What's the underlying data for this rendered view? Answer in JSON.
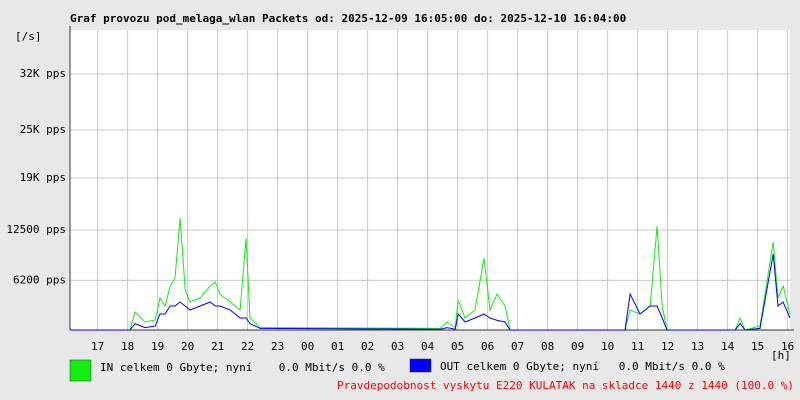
{
  "chart_data": {
    "type": "line",
    "title": "Graf provozu pod_melaga_wlan Packets od: 2025-12-09 16:05:00 do: 2025-12-10 16:04:00",
    "y_label": "[/s]",
    "x_label": "[h]",
    "footer": "Pravdepodobnost vyskytu E220 KULATAK na skladce 1440 z 1440 (100.0 %)",
    "grid": true,
    "xlim": [
      16.08,
      40.08
    ],
    "xticks": [
      17,
      18,
      19,
      20,
      21,
      22,
      23,
      {
        "value": 24,
        "label": "00"
      },
      {
        "value": 25,
        "label": "01"
      },
      {
        "value": 26,
        "label": "02"
      },
      {
        "value": 27,
        "label": "03"
      },
      {
        "value": 28,
        "label": "04"
      },
      {
        "value": 29,
        "label": "05"
      },
      {
        "value": 30,
        "label": "06"
      },
      {
        "value": 31,
        "label": "07"
      },
      {
        "value": 32,
        "label": "08"
      },
      {
        "value": 33,
        "label": "09"
      },
      {
        "value": 34,
        "label": "10"
      },
      {
        "value": 35,
        "label": "11"
      },
      {
        "value": 36,
        "label": "12"
      },
      {
        "value": 37,
        "label": "13"
      },
      {
        "value": 38,
        "label": "14"
      },
      {
        "value": 39,
        "label": "15"
      },
      {
        "value": 40,
        "label": "16"
      }
    ],
    "ylim": [
      0,
      37500
    ],
    "yticks": [
      {
        "value": 6200,
        "label": "6200 pps"
      },
      {
        "value": 12500,
        "label": "12500 pps"
      },
      {
        "value": 19000,
        "label": "19K pps"
      },
      {
        "value": 25000,
        "label": "25K pps"
      },
      {
        "value": 32000,
        "label": "32K pps"
      }
    ],
    "x": [
      16.08,
      18.08,
      18.25,
      18.58,
      18.92,
      19.08,
      19.25,
      19.42,
      19.58,
      19.75,
      19.92,
      20.08,
      20.42,
      20.75,
      20.92,
      21.08,
      21.42,
      21.75,
      21.95,
      22.08,
      22.42,
      28.42,
      28.65,
      28.92,
      29.02,
      29.25,
      29.58,
      29.88,
      30.08,
      30.32,
      30.58,
      30.75,
      34.58,
      34.75,
      35.08,
      35.42,
      35.65,
      35.82,
      35.98,
      38.25,
      38.42,
      38.58,
      39.08,
      39.52,
      39.68,
      39.85,
      40.08
    ],
    "series": [
      {
        "name": "IN celkem 0 Gbyte; nyní    0.0 Mbit/s 0.0 %",
        "color": "#11ee11",
        "values": [
          0,
          0,
          2250,
          1000,
          1250,
          4000,
          3000,
          5500,
          6500,
          14000,
          5000,
          3500,
          4000,
          5500,
          6000,
          4500,
          3500,
          2500,
          11500,
          1500,
          300,
          200,
          1000,
          300,
          3700,
          1500,
          2500,
          9000,
          2500,
          4500,
          3000,
          0,
          0,
          2500,
          2000,
          3000,
          13000,
          3000,
          0,
          0,
          1500,
          0,
          500,
          11000,
          4000,
          5500,
          2000
        ]
      },
      {
        "name": "OUT celkem 0 Gbyte; nyní   0.0 Mbit/s 0.0 %",
        "color": "#0000ff",
        "values": [
          0,
          0,
          800,
          300,
          500,
          2000,
          2000,
          3000,
          3000,
          3500,
          3000,
          2500,
          3000,
          3500,
          3000,
          3000,
          2500,
          1500,
          1500,
          800,
          200,
          100,
          300,
          100,
          2000,
          1000,
          1500,
          2000,
          1500,
          1200,
          1000,
          0,
          0,
          4500,
          2000,
          3000,
          3000,
          1500,
          0,
          0,
          800,
          0,
          200,
          9500,
          3000,
          3500,
          1500
        ]
      }
    ]
  }
}
